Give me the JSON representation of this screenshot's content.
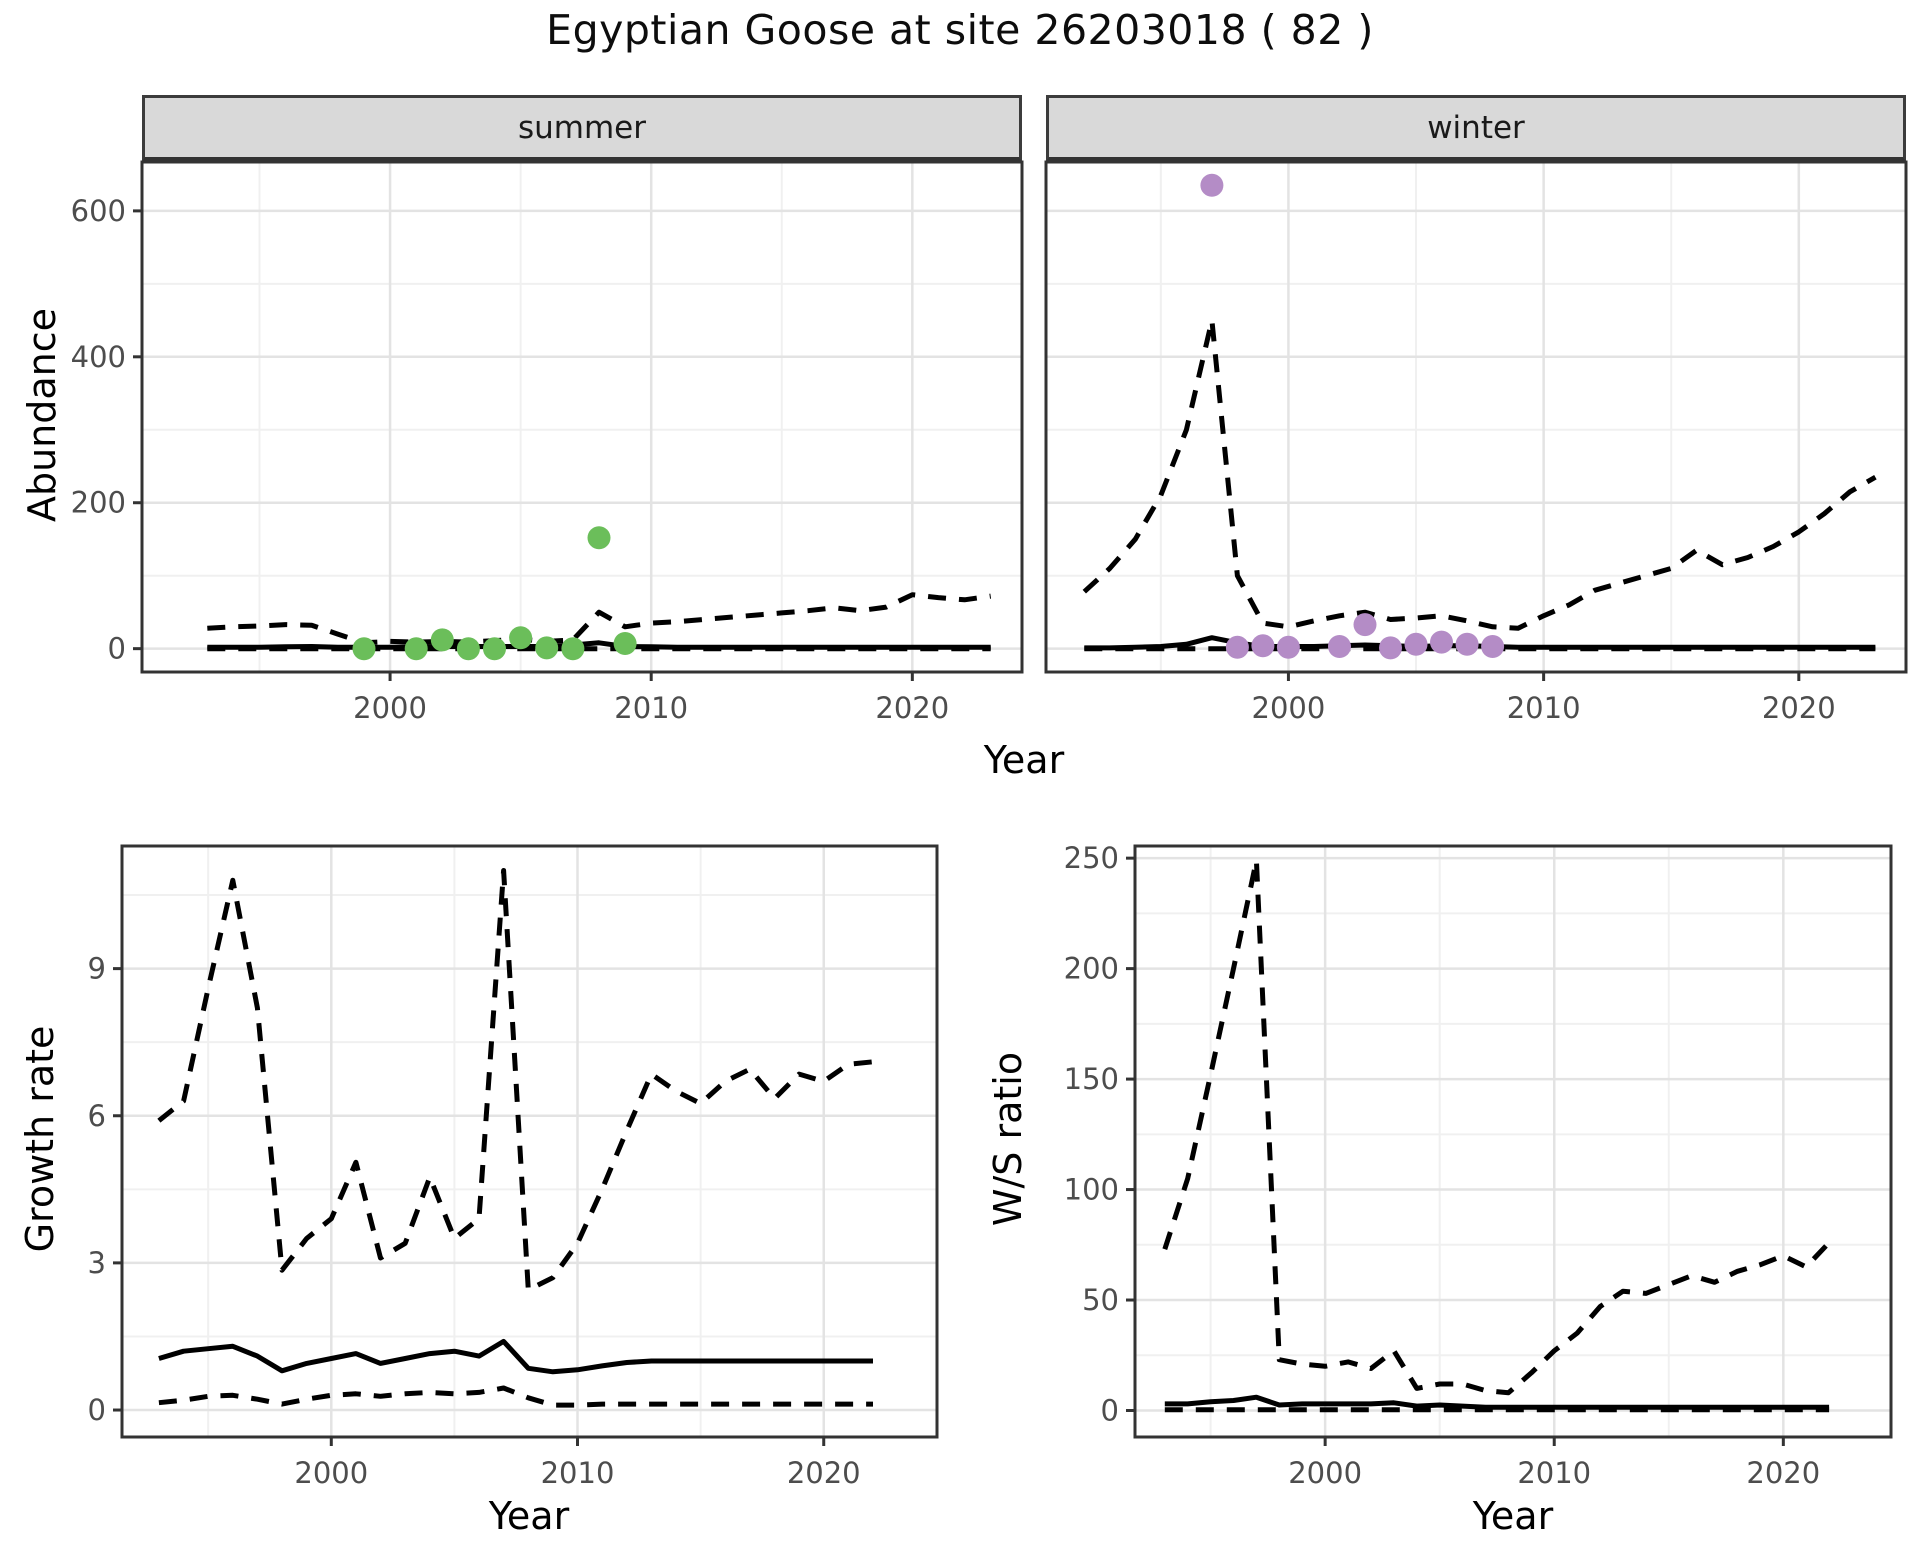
{
  "title": "Egyptian Goose at site 26203018 ( 82 )",
  "colors": {
    "summer_points": "#6BBE5A",
    "winter_points": "#B48CC6",
    "line": "#000000",
    "panel_border": "#333333",
    "strip_bg": "#D9D9D9",
    "grid_major": "#E3E3E3",
    "grid_minor": "#F0F0F0",
    "tick_label": "#4D4D4D"
  },
  "chart_data": [
    {
      "id": "abundance-summer",
      "type": "line",
      "facet_label": "summer",
      "xlabel": "Year",
      "ylabel": "Abundance",
      "xlim": [
        1990.5,
        2024.2
      ],
      "ylim": [
        -32,
        667
      ],
      "xticks": [
        2000,
        2010,
        2020
      ],
      "yticks": [
        0,
        200,
        400,
        600
      ],
      "show_y_labels": true,
      "legend": "none",
      "grid": true,
      "series": [
        {
          "name": "upper_ci",
          "style": "dashed",
          "x": [
            1993,
            1994,
            1995,
            1996,
            1997,
            1998,
            1999,
            2000,
            2001,
            2002,
            2003,
            2004,
            2005,
            2006,
            2007,
            2008,
            2009,
            2010,
            2011,
            2012,
            2013,
            2014,
            2015,
            2016,
            2017,
            2018,
            2019,
            2020,
            2021,
            2022,
            2023
          ],
          "y": [
            28,
            30,
            31,
            33,
            32,
            20,
            8,
            10,
            9,
            10,
            9,
            11,
            13,
            10,
            12,
            50,
            30,
            35,
            37,
            40,
            43,
            46,
            49,
            52,
            56,
            52,
            57,
            74,
            70,
            67,
            72
          ]
        },
        {
          "name": "median",
          "style": "solid",
          "x": [
            1993,
            1994,
            1995,
            1996,
            1997,
            1998,
            1999,
            2000,
            2001,
            2002,
            2003,
            2004,
            2005,
            2006,
            2007,
            2008,
            2009,
            2010,
            2011,
            2012,
            2013,
            2014,
            2015,
            2016,
            2017,
            2018,
            2019,
            2020,
            2021,
            2022,
            2023
          ],
          "y": [
            2,
            2,
            2,
            2.5,
            3,
            2,
            2,
            2,
            2.5,
            3,
            3,
            3,
            3,
            3,
            5,
            8,
            3,
            2.5,
            2,
            2,
            2,
            2,
            2,
            2,
            2,
            2,
            2,
            2,
            2,
            2,
            2
          ]
        },
        {
          "name": "lower_ci",
          "style": "dashed",
          "x": [
            1993,
            2023
          ],
          "y": [
            0,
            0
          ]
        }
      ],
      "points": {
        "name": "observed",
        "color_key": "summer_points",
        "x": [
          1999,
          2001,
          2002,
          2003,
          2004,
          2005,
          2006,
          2007,
          2008,
          2009
        ],
        "y": [
          0,
          0,
          12,
          0,
          0,
          15,
          1,
          0,
          152,
          7
        ]
      }
    },
    {
      "id": "abundance-winter",
      "type": "line",
      "facet_label": "winter",
      "xlabel": "Year",
      "ylabel": "Abundance",
      "xlim": [
        1990.5,
        2024.2
      ],
      "ylim": [
        -32,
        667
      ],
      "xticks": [
        2000,
        2010,
        2020
      ],
      "yticks": [
        0,
        200,
        400,
        600
      ],
      "show_y_labels": false,
      "legend": "none",
      "grid": true,
      "series": [
        {
          "name": "upper_ci",
          "style": "dashed",
          "x": [
            1992,
            1993,
            1994,
            1995,
            1996,
            1997,
            1998,
            1999,
            2000,
            2001,
            2002,
            2003,
            2004,
            2005,
            2006,
            2007,
            2008,
            2009,
            2010,
            2011,
            2012,
            2013,
            2014,
            2015,
            2016,
            2017,
            2018,
            2019,
            2020,
            2021,
            2022,
            2023
          ],
          "y": [
            78,
            110,
            150,
            210,
            300,
            450,
            100,
            35,
            30,
            38,
            45,
            50,
            40,
            42,
            45,
            38,
            30,
            28,
            45,
            60,
            80,
            90,
            100,
            110,
            135,
            115,
            125,
            140,
            160,
            185,
            215,
            235
          ]
        },
        {
          "name": "median",
          "style": "solid",
          "x": [
            1992,
            1993,
            1994,
            1995,
            1996,
            1997,
            1998,
            1999,
            2000,
            2001,
            2002,
            2003,
            2004,
            2005,
            2006,
            2007,
            2008,
            2009,
            2010,
            2011,
            2012,
            2013,
            2014,
            2015,
            2016,
            2017,
            2018,
            2019,
            2020,
            2021,
            2022,
            2023
          ],
          "y": [
            1,
            1,
            2,
            3,
            6,
            15,
            8,
            3,
            3,
            3,
            4,
            5,
            4,
            3,
            4,
            4,
            3,
            2,
            2,
            2,
            2,
            2,
            2,
            2,
            2,
            2,
            2,
            2,
            2,
            2,
            2,
            2
          ]
        },
        {
          "name": "lower_ci",
          "style": "dashed",
          "x": [
            1992,
            2023
          ],
          "y": [
            0,
            0
          ]
        }
      ],
      "points": {
        "name": "observed",
        "color_key": "winter_points",
        "x": [
          1997,
          1998,
          1999,
          2000,
          2002,
          2003,
          2004,
          2005,
          2006,
          2007,
          2008
        ],
        "y": [
          635,
          2,
          4,
          2,
          3,
          33,
          1,
          6,
          9,
          6,
          3
        ]
      }
    },
    {
      "id": "growth-rate",
      "type": "line",
      "facet_label": null,
      "xlabel": "Year",
      "ylabel": "Growth rate",
      "xlim": [
        1991.5,
        2024.6
      ],
      "ylim": [
        -0.55,
        11.5
      ],
      "xticks": [
        2000,
        2010,
        2020
      ],
      "yticks": [
        0,
        3,
        6,
        9
      ],
      "show_y_labels": true,
      "legend": "none",
      "grid": true,
      "series": [
        {
          "name": "upper_ci",
          "style": "dashed",
          "x": [
            1993,
            1994,
            1995,
            1996,
            1997,
            1998,
            1999,
            2000,
            2001,
            2002,
            2003,
            2004,
            2005,
            2006,
            2007,
            2008,
            2009,
            2010,
            2011,
            2012,
            2013,
            2014,
            2015,
            2016,
            2017,
            2018,
            2019,
            2020,
            2021,
            2022
          ],
          "y": [
            5.9,
            6.3,
            8.6,
            10.8,
            8.2,
            2.85,
            3.5,
            3.9,
            5.05,
            3.1,
            3.4,
            4.75,
            3.5,
            3.9,
            11.0,
            2.45,
            2.7,
            3.4,
            4.5,
            5.7,
            6.85,
            6.5,
            6.25,
            6.7,
            6.95,
            6.35,
            6.85,
            6.7,
            7.05,
            7.1
          ]
        },
        {
          "name": "median",
          "style": "solid",
          "x": [
            1993,
            1994,
            1995,
            1996,
            1997,
            1998,
            1999,
            2000,
            2001,
            2002,
            2003,
            2004,
            2005,
            2006,
            2007,
            2008,
            2009,
            2010,
            2011,
            2012,
            2013,
            2014,
            2015,
            2016,
            2017,
            2018,
            2019,
            2020,
            2021,
            2022
          ],
          "y": [
            1.05,
            1.2,
            1.25,
            1.3,
            1.1,
            0.8,
            0.95,
            1.05,
            1.15,
            0.95,
            1.05,
            1.15,
            1.2,
            1.1,
            1.4,
            0.85,
            0.78,
            0.82,
            0.9,
            0.97,
            1.0,
            1.0,
            1.0,
            1.0,
            1.0,
            1.0,
            1.0,
            1.0,
            1.0,
            1.0
          ]
        },
        {
          "name": "lower_ci",
          "style": "dashed",
          "x": [
            1993,
            1994,
            1995,
            1996,
            1997,
            1998,
            1999,
            2000,
            2001,
            2002,
            2003,
            2004,
            2005,
            2006,
            2007,
            2008,
            2009,
            2010,
            2011,
            2012,
            2013,
            2014,
            2015,
            2016,
            2017,
            2018,
            2019,
            2020,
            2021,
            2022
          ],
          "y": [
            0.15,
            0.2,
            0.28,
            0.3,
            0.22,
            0.12,
            0.22,
            0.3,
            0.33,
            0.28,
            0.33,
            0.36,
            0.33,
            0.36,
            0.45,
            0.25,
            0.1,
            0.1,
            0.12,
            0.12,
            0.12,
            0.12,
            0.12,
            0.12,
            0.12,
            0.12,
            0.12,
            0.12,
            0.12,
            0.12
          ]
        }
      ],
      "points": null
    },
    {
      "id": "ws-ratio",
      "type": "line",
      "facet_label": null,
      "xlabel": "Year",
      "ylabel": "W/S ratio",
      "xlim": [
        1991.7,
        2024.7
      ],
      "ylim": [
        -12,
        255.5
      ],
      "xticks": [
        2000,
        2010,
        2020
      ],
      "yticks": [
        0,
        50,
        100,
        150,
        200,
        250
      ],
      "show_y_labels": true,
      "legend": "none",
      "grid": true,
      "series": [
        {
          "name": "upper_ci",
          "style": "dashed",
          "x": [
            1993,
            1994,
            1995,
            1996,
            1997,
            1998,
            1999,
            2000,
            2001,
            2002,
            2003,
            2004,
            2005,
            2006,
            2007,
            2008,
            2009,
            2010,
            2011,
            2012,
            2013,
            2014,
            2015,
            2016,
            2017,
            2018,
            2019,
            2020,
            2021,
            2022
          ],
          "y": [
            73,
            105,
            152,
            200,
            249,
            23,
            21,
            20,
            22,
            19,
            27,
            10,
            12,
            12,
            9,
            8,
            17,
            27,
            35,
            47,
            54,
            53,
            57,
            61,
            58,
            63,
            66,
            70,
            65,
            76
          ]
        },
        {
          "name": "median",
          "style": "solid",
          "x": [
            1993,
            1994,
            1995,
            1996,
            1997,
            1998,
            1999,
            2000,
            2001,
            2002,
            2003,
            2004,
            2005,
            2006,
            2007,
            2008,
            2009,
            2010,
            2011,
            2012,
            2013,
            2014,
            2015,
            2016,
            2017,
            2018,
            2019,
            2020,
            2021,
            2022
          ],
          "y": [
            3,
            3,
            4,
            4.5,
            6,
            2.5,
            3,
            3,
            3,
            3,
            3.5,
            2,
            2.5,
            2,
            1.5,
            1.5,
            1.5,
            1.5,
            1.5,
            1.5,
            1.5,
            1.5,
            1.5,
            1.5,
            1.5,
            1.5,
            1.5,
            1.5,
            1.5,
            1.5
          ]
        },
        {
          "name": "lower_ci",
          "style": "dashed",
          "x": [
            1993,
            2022
          ],
          "y": [
            0.3,
            0.3
          ]
        }
      ],
      "points": null
    }
  ]
}
